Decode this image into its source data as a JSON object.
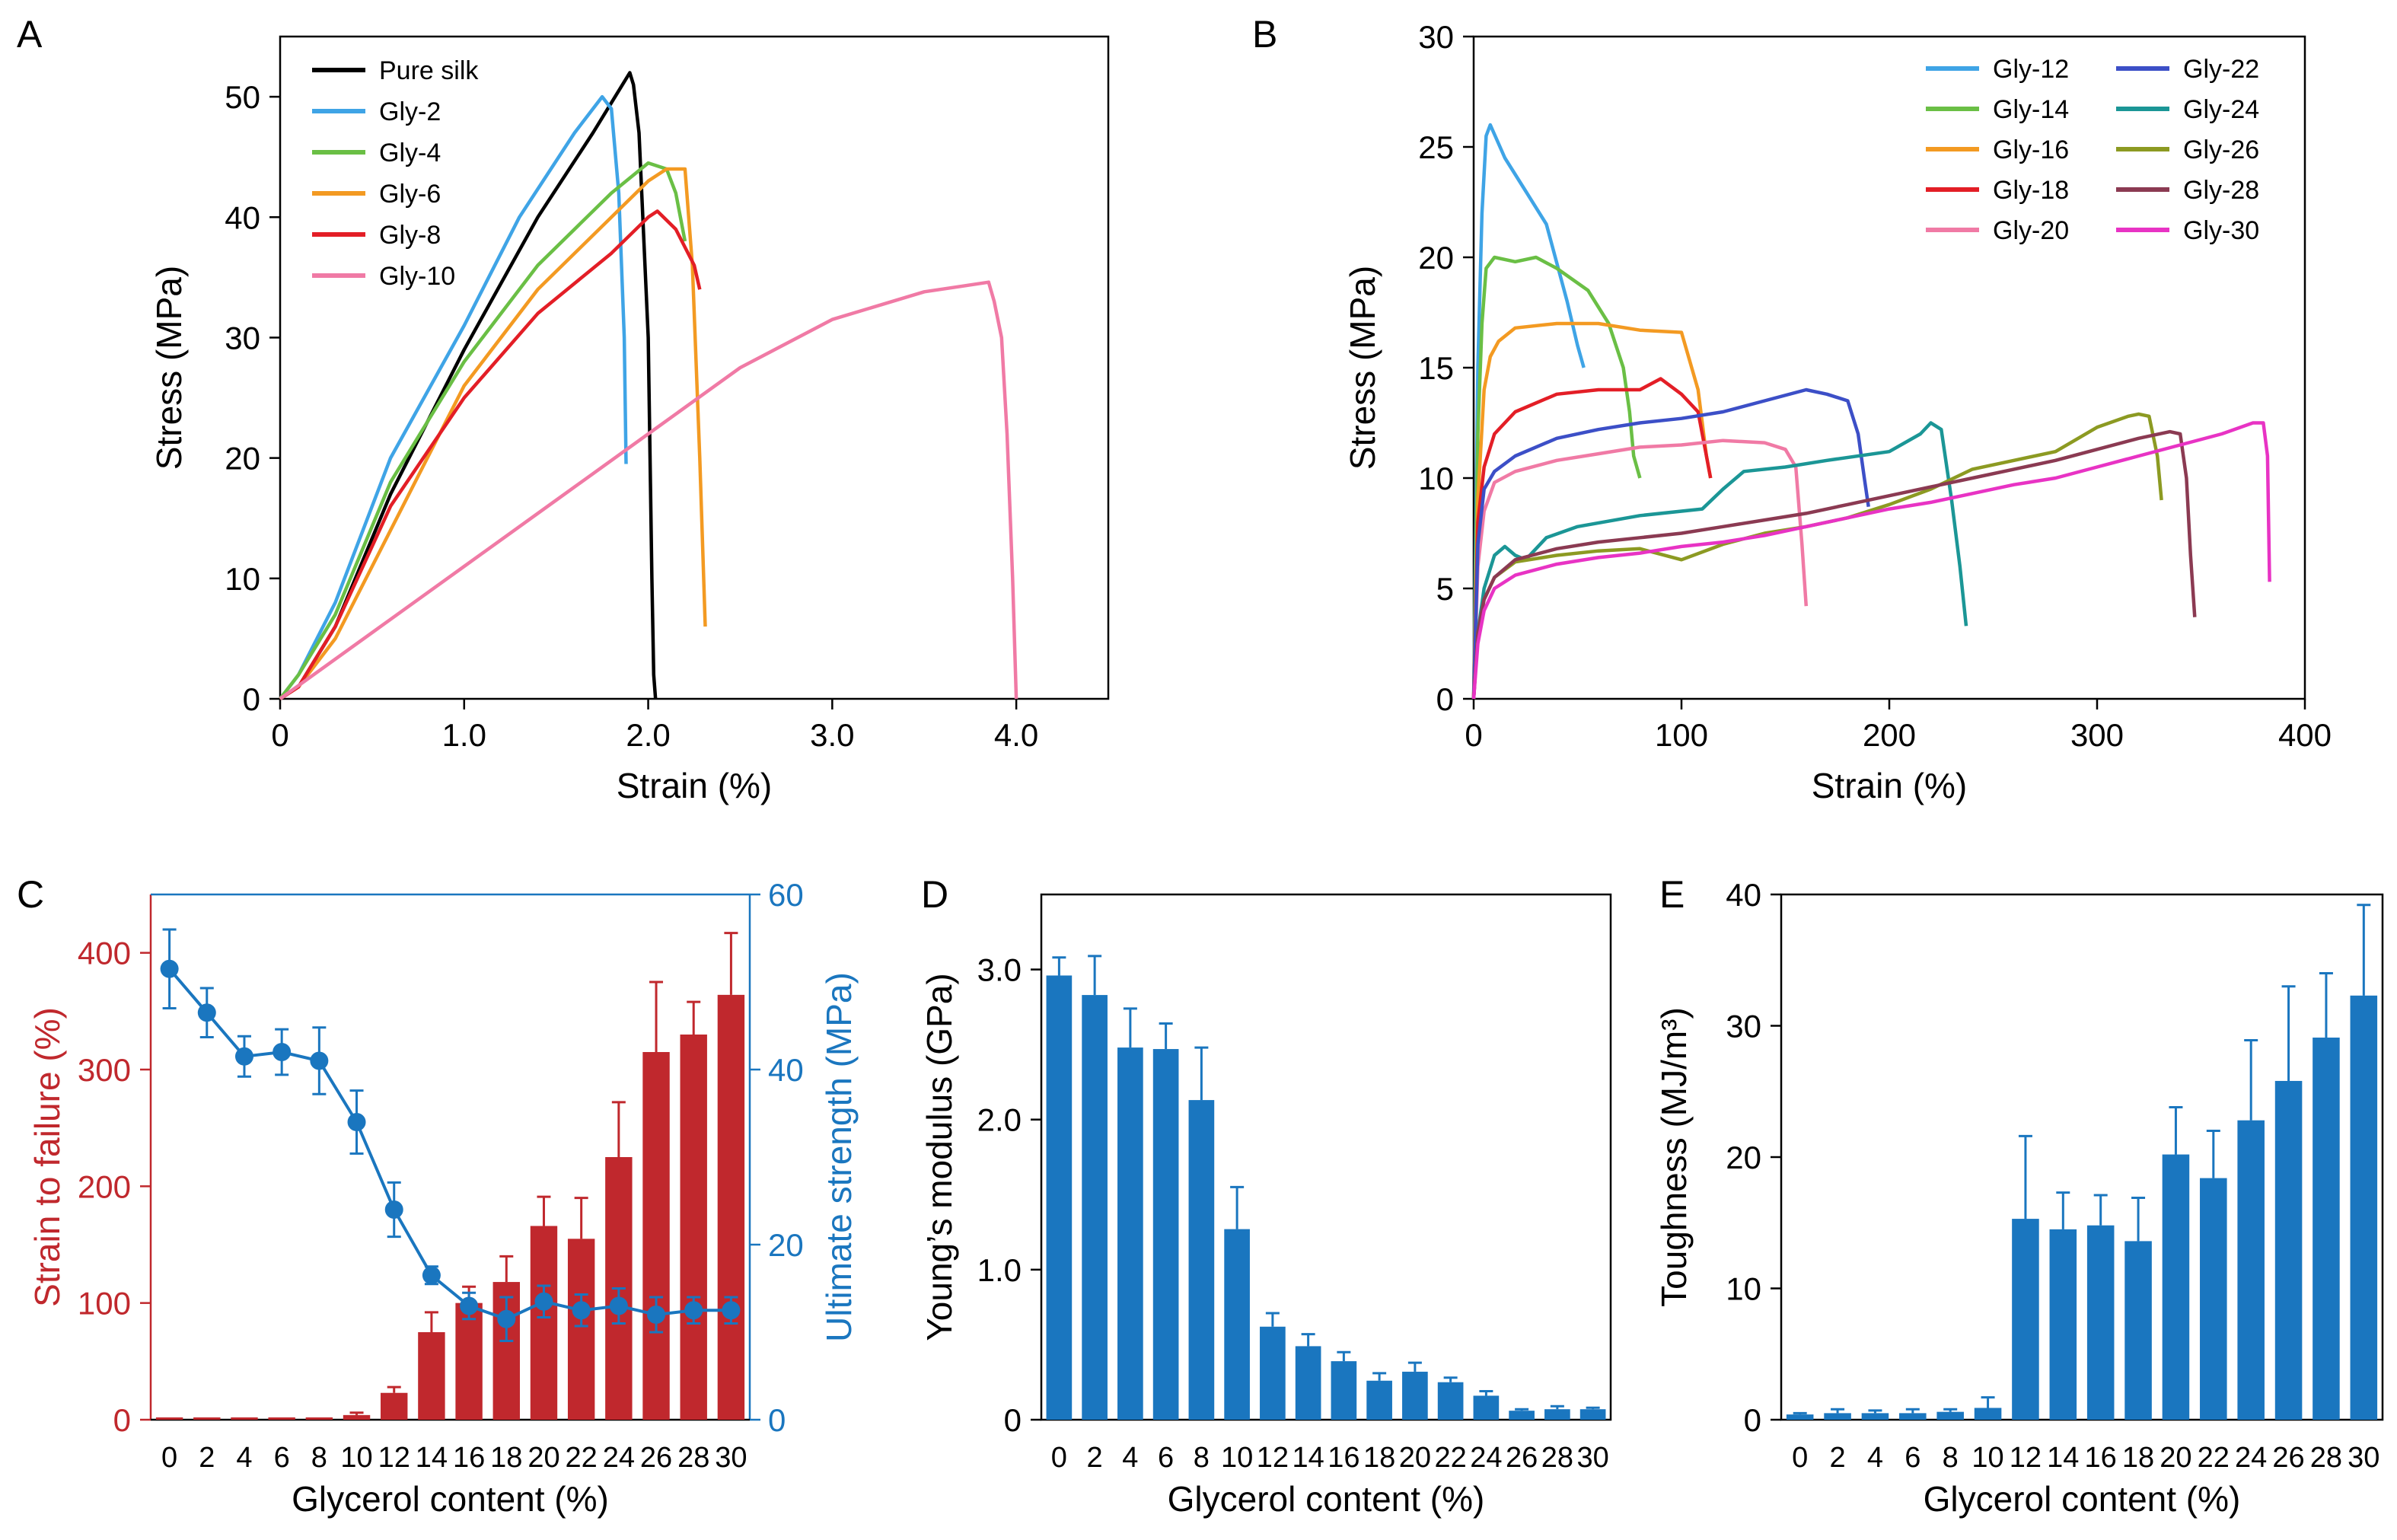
{
  "panels": {
    "a": "A",
    "b": "B",
    "c": "C",
    "d": "D",
    "e": "E"
  },
  "colors": {
    "axis": "#000000",
    "bar_c": "#c0282d",
    "line_c": "#1a76bf",
    "bar_de": "#1a76bf",
    "axis_c_left": "#c0282d",
    "axis_c_right": "#1a76bf"
  },
  "chart_data": [
    {
      "id": "A",
      "type": "line",
      "xlabel": "Strain (%)",
      "ylabel": "Stress (MPa)",
      "xlim": [
        0,
        4.5
      ],
      "ylim": [
        0,
        55
      ],
      "xticks": [
        0,
        1,
        2,
        3,
        4
      ],
      "xtick_labels": [
        "0",
        "1.0",
        "2.0",
        "3.0",
        "4.0"
      ],
      "yticks": [
        0,
        10,
        20,
        30,
        40,
        50
      ],
      "ytick_labels": [
        "0",
        "10",
        "20",
        "30",
        "40",
        "50"
      ],
      "legend": "top-left",
      "series": [
        {
          "name": "Pure silk",
          "color": "#000000",
          "x": [
            0,
            0.1,
            0.3,
            0.6,
            1.0,
            1.4,
            1.7,
            1.9,
            1.92,
            1.95,
            2.0,
            2.02,
            2.03,
            2.04
          ],
          "y": [
            0,
            1,
            6,
            17,
            29,
            40,
            47,
            52,
            51,
            47,
            30,
            10,
            2,
            0
          ]
        },
        {
          "name": "Gly-2",
          "color": "#3fa4e6",
          "x": [
            0,
            0.1,
            0.3,
            0.6,
            1.0,
            1.3,
            1.6,
            1.75,
            1.8,
            1.84,
            1.87,
            1.88
          ],
          "y": [
            0,
            2,
            8,
            20,
            31,
            40,
            47,
            50,
            49,
            42,
            30,
            19.5
          ]
        },
        {
          "name": "Gly-4",
          "color": "#6abf45",
          "x": [
            0,
            0.1,
            0.3,
            0.6,
            1.0,
            1.4,
            1.8,
            2.0,
            2.1,
            2.15,
            2.2
          ],
          "y": [
            0,
            2,
            7,
            18,
            28,
            36,
            42,
            44.5,
            44,
            42,
            38
          ]
        },
        {
          "name": "Gly-6",
          "color": "#f39a22",
          "x": [
            0,
            0.1,
            0.3,
            0.6,
            1.0,
            1.4,
            1.8,
            2.0,
            2.1,
            2.2,
            2.24,
            2.28,
            2.31
          ],
          "y": [
            0,
            1,
            5,
            14,
            26,
            34,
            40,
            43,
            44,
            44,
            36,
            20,
            6
          ]
        },
        {
          "name": "Gly-8",
          "color": "#e31e26",
          "x": [
            0,
            0.1,
            0.3,
            0.6,
            1.0,
            1.4,
            1.8,
            2.0,
            2.05,
            2.15,
            2.25,
            2.28
          ],
          "y": [
            0,
            1,
            6,
            16,
            25,
            32,
            37,
            40,
            40.5,
            39,
            36,
            34
          ]
        },
        {
          "name": "Gly-10",
          "color": "#f07aa5",
          "x": [
            0,
            0.5,
            1.0,
            1.5,
            2.0,
            2.5,
            3.0,
            3.5,
            3.85,
            3.88,
            3.92,
            3.95,
            3.98,
            4.0
          ],
          "y": [
            0,
            5.5,
            11,
            16.5,
            22,
            27.5,
            31.5,
            33.8,
            34.6,
            33,
            30,
            22,
            10,
            0
          ]
        }
      ]
    },
    {
      "id": "B",
      "type": "line",
      "xlabel": "Strain (%)",
      "ylabel": "Stress (MPa)",
      "xlim": [
        0,
        400
      ],
      "ylim": [
        0,
        30
      ],
      "xticks": [
        0,
        100,
        200,
        300,
        400
      ],
      "xtick_labels": [
        "0",
        "100",
        "200",
        "300",
        "400"
      ],
      "yticks": [
        0,
        5,
        10,
        15,
        20,
        25,
        30
      ],
      "ytick_labels": [
        "0",
        "5",
        "10",
        "15",
        "20",
        "25",
        "30"
      ],
      "legend": "top-right",
      "series": [
        {
          "name": "Gly-12",
          "color": "#3fa4e6",
          "x": [
            0,
            2,
            4,
            6,
            8,
            15,
            25,
            35,
            45,
            50,
            53
          ],
          "y": [
            0,
            15,
            22,
            25.5,
            26,
            24.5,
            23,
            21.5,
            18,
            16,
            15
          ]
        },
        {
          "name": "Gly-14",
          "color": "#6abf45",
          "x": [
            0,
            2,
            4,
            6,
            10,
            20,
            30,
            40,
            55,
            65,
            72,
            75,
            77,
            80
          ],
          "y": [
            0,
            12,
            17,
            19.5,
            20,
            19.8,
            20,
            19.5,
            18.5,
            17,
            15,
            13,
            11,
            10
          ]
        },
        {
          "name": "Gly-16",
          "color": "#f39a22",
          "x": [
            0,
            2,
            5,
            8,
            12,
            20,
            40,
            60,
            80,
            100,
            108,
            112,
            114
          ],
          "y": [
            0,
            9,
            14,
            15.5,
            16.2,
            16.8,
            17,
            17,
            16.7,
            16.6,
            14,
            11,
            10
          ]
        },
        {
          "name": "Gly-18",
          "color": "#e31e26",
          "x": [
            0,
            2,
            5,
            10,
            20,
            40,
            60,
            80,
            90,
            100,
            108,
            112,
            114
          ],
          "y": [
            0,
            8,
            10.5,
            12,
            13,
            13.8,
            14,
            14,
            14.5,
            13.8,
            13,
            11,
            10
          ]
        },
        {
          "name": "Gly-20",
          "color": "#f07aa5",
          "x": [
            0,
            2,
            5,
            10,
            20,
            40,
            60,
            80,
            100,
            120,
            140,
            150,
            155,
            158,
            160
          ],
          "y": [
            0,
            6,
            8.5,
            9.8,
            10.3,
            10.8,
            11.1,
            11.4,
            11.5,
            11.7,
            11.6,
            11.3,
            10.5,
            7,
            4.2
          ]
        },
        {
          "name": "Gly-22",
          "color": "#3c4fc7",
          "x": [
            0,
            2,
            5,
            10,
            20,
            40,
            60,
            80,
            100,
            120,
            140,
            160,
            170,
            180,
            185,
            188,
            190
          ],
          "y": [
            0,
            7,
            9.5,
            10.3,
            11,
            11.8,
            12.2,
            12.5,
            12.7,
            13,
            13.5,
            14,
            13.8,
            13.5,
            12,
            10,
            8.7
          ]
        },
        {
          "name": "Gly-24",
          "color": "#1b9696",
          "x": [
            0,
            2,
            5,
            10,
            15,
            20,
            25,
            35,
            50,
            80,
            110,
            120,
            130,
            150,
            170,
            200,
            215,
            220,
            225,
            230,
            234,
            237
          ],
          "y": [
            0,
            3,
            5,
            6.5,
            6.9,
            6.5,
            6.3,
            7.3,
            7.8,
            8.3,
            8.6,
            9.5,
            10.3,
            10.5,
            10.8,
            11.2,
            12,
            12.5,
            12.2,
            9,
            6,
            3.3
          ]
        },
        {
          "name": "Gly-26",
          "color": "#8c9a22",
          "x": [
            0,
            2,
            5,
            10,
            20,
            40,
            60,
            80,
            100,
            120,
            140,
            160,
            180,
            200,
            220,
            240,
            260,
            280,
            300,
            315,
            320,
            325,
            329,
            331
          ],
          "y": [
            0,
            3,
            4.5,
            5.5,
            6.2,
            6.5,
            6.7,
            6.8,
            6.3,
            7,
            7.5,
            7.8,
            8.2,
            8.8,
            9.5,
            10.4,
            10.8,
            11.2,
            12.3,
            12.8,
            12.9,
            12.8,
            11,
            9
          ]
        },
        {
          "name": "Gly-28",
          "color": "#8b3a52",
          "x": [
            0,
            2,
            5,
            10,
            20,
            40,
            60,
            80,
            100,
            120,
            140,
            160,
            180,
            200,
            220,
            240,
            260,
            280,
            300,
            320,
            335,
            340,
            343,
            345,
            347
          ],
          "y": [
            0,
            3,
            4.5,
            5.5,
            6.3,
            6.8,
            7.1,
            7.3,
            7.5,
            7.8,
            8.1,
            8.4,
            8.8,
            9.2,
            9.6,
            10,
            10.4,
            10.8,
            11.3,
            11.8,
            12.1,
            12,
            10,
            6.5,
            3.7
          ]
        },
        {
          "name": "Gly-30",
          "color": "#e833c4",
          "x": [
            0,
            2,
            5,
            10,
            20,
            40,
            60,
            80,
            100,
            120,
            140,
            160,
            180,
            200,
            220,
            240,
            260,
            280,
            300,
            320,
            340,
            360,
            375,
            380,
            382,
            383
          ],
          "y": [
            0,
            2.5,
            4,
            5,
            5.6,
            6.1,
            6.4,
            6.6,
            6.9,
            7.1,
            7.4,
            7.8,
            8.2,
            8.6,
            8.9,
            9.3,
            9.7,
            10,
            10.5,
            11,
            11.5,
            12,
            12.5,
            12.5,
            11,
            5.3
          ]
        }
      ]
    },
    {
      "id": "C",
      "type": "bar",
      "xlabel": "Glycerol content (%)",
      "ylabel": "Strain to failure (%)",
      "y2label": "Ultimate strength (MPa)",
      "categories": [
        "0",
        "2",
        "4",
        "6",
        "8",
        "10",
        "12",
        "14",
        "16",
        "18",
        "20",
        "22",
        "24",
        "26",
        "28",
        "30"
      ],
      "ylim": [
        0,
        450
      ],
      "yticks": [
        0,
        100,
        200,
        300,
        400
      ],
      "ytick_labels": [
        "0",
        "100",
        "200",
        "300",
        "400"
      ],
      "y2lim": [
        0,
        60
      ],
      "y2ticks": [
        0,
        20,
        40,
        60
      ],
      "y2tick_labels": [
        "0",
        "20",
        "40",
        "60"
      ],
      "series": [
        {
          "name": "Strain to failure",
          "axis": "left",
          "kind": "bar",
          "values": [
            2,
            2,
            2,
            2,
            2,
            4,
            23,
            75,
            100,
            118,
            166,
            155,
            225,
            315,
            330,
            364
          ],
          "errors": [
            0,
            0,
            0,
            0,
            0,
            2,
            5,
            17,
            14,
            22,
            25,
            35,
            47,
            60,
            28,
            53
          ]
        },
        {
          "name": "Ultimate strength",
          "axis": "right",
          "kind": "line",
          "values": [
            51.5,
            46.5,
            41.5,
            42,
            41,
            34,
            24,
            16.5,
            13,
            11.5,
            13.5,
            12.5,
            13,
            12,
            12.5,
            12.5
          ],
          "errors": [
            4.5,
            2.8,
            2.3,
            2.6,
            3.8,
            3.6,
            3.1,
            1,
            1.5,
            2.5,
            1.8,
            1.8,
            2,
            2,
            1.5,
            1.5
          ]
        }
      ]
    },
    {
      "id": "D",
      "type": "bar",
      "xlabel": "Glycerol content (%)",
      "ylabel": "Young’s modulus (GPa)",
      "categories": [
        "0",
        "2",
        "4",
        "6",
        "8",
        "10",
        "12",
        "14",
        "16",
        "18",
        "20",
        "22",
        "24",
        "26",
        "28",
        "30"
      ],
      "ylim": [
        0,
        3.5
      ],
      "yticks": [
        0,
        1,
        2,
        3
      ],
      "ytick_labels": [
        "0",
        "1.0",
        "2.0",
        "3.0"
      ],
      "values": [
        2.96,
        2.83,
        2.48,
        2.47,
        2.13,
        1.27,
        0.62,
        0.49,
        0.39,
        0.26,
        0.32,
        0.25,
        0.16,
        0.06,
        0.07,
        0.07
      ],
      "errors": [
        0.12,
        0.26,
        0.26,
        0.17,
        0.35,
        0.28,
        0.09,
        0.08,
        0.06,
        0.05,
        0.06,
        0.03,
        0.03,
        0.01,
        0.02,
        0.01
      ]
    },
    {
      "id": "E",
      "type": "bar",
      "xlabel": "Glycerol content (%)",
      "ylabel": "Toughness (MJ/m³)",
      "categories": [
        "0",
        "2",
        "4",
        "6",
        "8",
        "10",
        "12",
        "14",
        "16",
        "18",
        "20",
        "22",
        "24",
        "26",
        "28",
        "30"
      ],
      "ylim": [
        0,
        40
      ],
      "yticks": [
        0,
        10,
        20,
        30,
        40
      ],
      "ytick_labels": [
        "0",
        "10",
        "20",
        "30",
        "40"
      ],
      "values": [
        0.4,
        0.5,
        0.5,
        0.5,
        0.6,
        0.9,
        15.3,
        14.5,
        14.8,
        13.6,
        20.2,
        18.4,
        22.8,
        25.8,
        29.1,
        32.3
      ],
      "errors": [
        0.1,
        0.3,
        0.2,
        0.3,
        0.2,
        0.8,
        6.3,
        2.8,
        2.3,
        3.3,
        3.6,
        3.6,
        6.1,
        7.2,
        4.9,
        6.9
      ]
    }
  ]
}
